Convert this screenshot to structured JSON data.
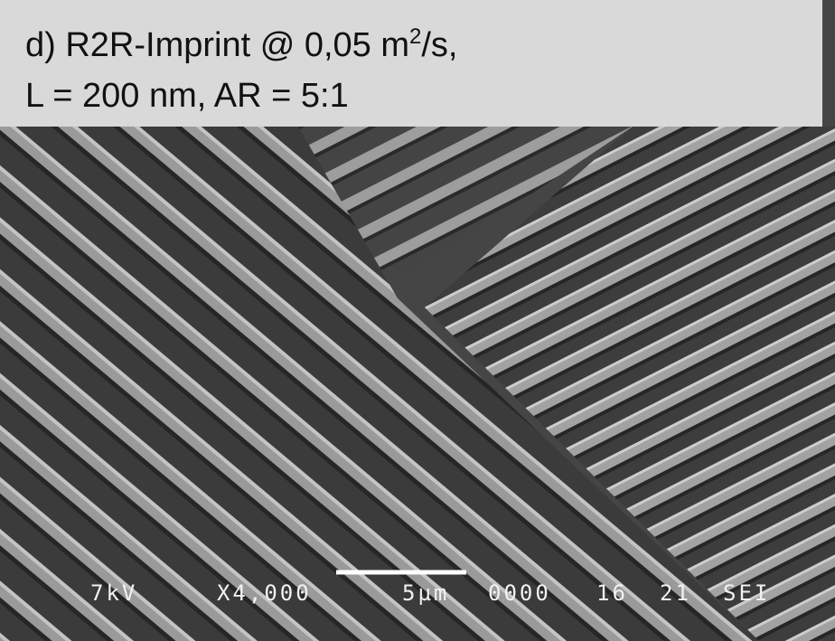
{
  "caption": {
    "line1": [
      "d) R2R-Imprint @ 0,05 m",
      "2",
      "/s,"
    ],
    "line2": "L = 200 nm, AR = 5:1"
  },
  "sem_info": {
    "voltage": "7kV",
    "magnification": "X4,000",
    "scale": "5µm",
    "fields": [
      "0000",
      "16",
      "21",
      "SEI"
    ]
  }
}
